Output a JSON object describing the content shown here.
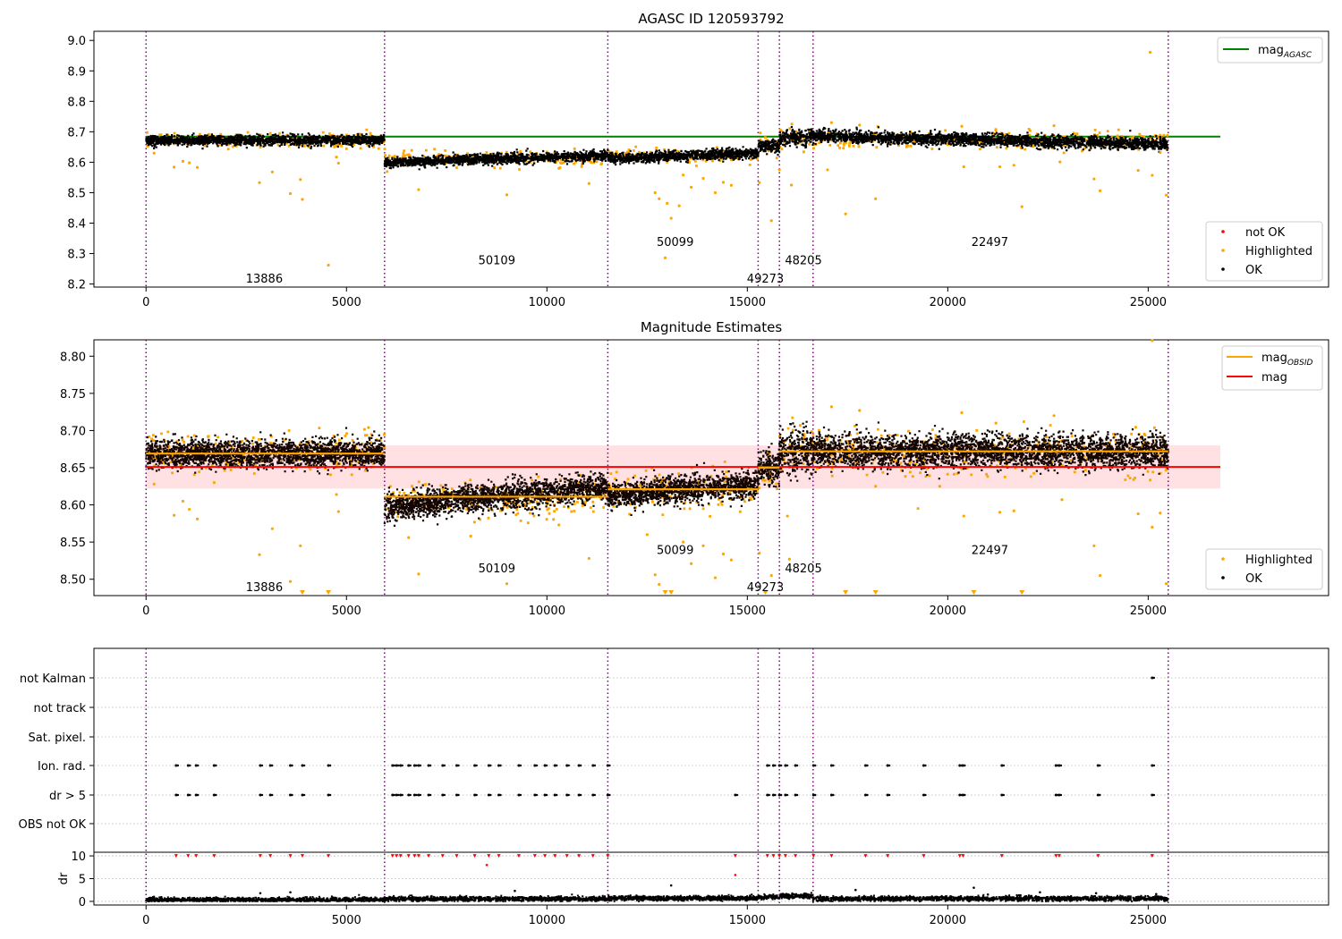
{
  "chart_data": [
    {
      "type": "scatter",
      "title": "AGASC ID 120593792",
      "xlim": [
        -1300,
        29500
      ],
      "ylim": [
        8.19,
        9.03
      ],
      "xticks": [
        0,
        5000,
        10000,
        15000,
        20000,
        25000
      ],
      "yticks": [
        8.2,
        8.3,
        8.4,
        8.5,
        8.6,
        8.7,
        8.8,
        8.9,
        9.0
      ],
      "xlabel": "",
      "ylabel": "",
      "grid": false,
      "obsid_boundaries": [
        0,
        5950,
        11520,
        15270,
        15800,
        16640,
        25500
      ],
      "obsid_segments": [
        {
          "obsid": "13886",
          "start": 0,
          "end": 5950,
          "level": 8.672,
          "spread": 0.01
        },
        {
          "obsid": "50109",
          "start": 5950,
          "end": 11520,
          "level": 8.611,
          "spread": 0.01
        },
        {
          "obsid": "50099",
          "start": 11520,
          "end": 15270,
          "level": 8.622,
          "spread": 0.01
        },
        {
          "obsid": "49273",
          "start": 15270,
          "end": 15800,
          "level": 8.652,
          "spread": 0.012
        },
        {
          "obsid": "48205",
          "start": 15800,
          "end": 16640,
          "level": 8.68,
          "spread": 0.016
        },
        {
          "obsid": "22497",
          "start": 16640,
          "end": 25500,
          "level": 8.672,
          "spread": 0.012
        }
      ],
      "obsid_labels": [
        {
          "text": "13886",
          "x": 2950,
          "y": 8.22
        },
        {
          "text": "50109",
          "x": 8750,
          "y": 8.28
        },
        {
          "text": "50099",
          "x": 13200,
          "y": 8.34
        },
        {
          "text": "49273",
          "x": 15450,
          "y": 8.22
        },
        {
          "text": "48205",
          "x": 16400,
          "y": 8.28
        },
        {
          "text": "22497",
          "x": 21050,
          "y": 8.34
        }
      ],
      "reference_line": {
        "name": "mag_AGASC",
        "y": 8.684,
        "x_range": [
          0,
          26800
        ],
        "color": "#008000"
      },
      "highlighted_points": [
        [
          2830,
          8.533
        ],
        [
          3150,
          8.568
        ],
        [
          3600,
          8.497
        ],
        [
          3850,
          8.543
        ],
        [
          3900,
          8.478
        ],
        [
          4550,
          8.262
        ],
        [
          4750,
          8.617
        ],
        [
          4800,
          8.597
        ],
        [
          920,
          8.603
        ],
        [
          1080,
          8.598
        ],
        [
          1280,
          8.583
        ],
        [
          200,
          8.63
        ],
        [
          700,
          8.584
        ],
        [
          6800,
          8.51
        ],
        [
          9000,
          8.493
        ],
        [
          10300,
          8.58
        ],
        [
          11050,
          8.53
        ],
        [
          12700,
          8.5
        ],
        [
          12800,
          8.48
        ],
        [
          13000,
          8.465
        ],
        [
          13100,
          8.416
        ],
        [
          13300,
          8.457
        ],
        [
          13400,
          8.558
        ],
        [
          13600,
          8.518
        ],
        [
          13900,
          8.547
        ],
        [
          14200,
          8.5
        ],
        [
          14400,
          8.534
        ],
        [
          14600,
          8.524
        ],
        [
          12950,
          8.286
        ],
        [
          15300,
          8.533
        ],
        [
          15600,
          8.408
        ],
        [
          15800,
          8.575
        ],
        [
          16100,
          8.525
        ],
        [
          17450,
          8.43
        ],
        [
          17000,
          8.575
        ],
        [
          18200,
          8.48
        ],
        [
          20400,
          8.585
        ],
        [
          21300,
          8.585
        ],
        [
          21650,
          8.59
        ],
        [
          21850,
          8.454
        ],
        [
          22800,
          8.601
        ],
        [
          23650,
          8.545
        ],
        [
          23800,
          8.506
        ],
        [
          24750,
          8.573
        ],
        [
          25100,
          8.557
        ],
        [
          25300,
          8.632
        ],
        [
          25450,
          8.492
        ],
        [
          25050,
          8.961
        ],
        [
          17100,
          8.73
        ],
        [
          17800,
          8.722
        ],
        [
          20350,
          8.718
        ],
        [
          22650,
          8.72
        ],
        [
          21200,
          8.705
        ]
      ],
      "legend_top": [
        {
          "label": "mag_AGASC",
          "color": "#008000",
          "marker": "line"
        }
      ],
      "legend_bottom": [
        {
          "label": "not OK",
          "color": "#ff0000",
          "marker": "dot"
        },
        {
          "label": "Highlighted",
          "color": "#ffa500",
          "marker": "dot"
        },
        {
          "label": "OK",
          "color": "#000000",
          "marker": "dot"
        }
      ]
    },
    {
      "type": "scatter",
      "title": "Magnitude Estimates",
      "xlim": [
        -1300,
        29500
      ],
      "ylim": [
        8.478,
        8.822
      ],
      "xticks": [
        0,
        5000,
        10000,
        15000,
        20000,
        25000
      ],
      "yticks": [
        8.5,
        8.55,
        8.6,
        8.65,
        8.7,
        8.75,
        8.8
      ],
      "xlabel": "",
      "ylabel": "",
      "grid": false,
      "mag_line": {
        "name": "mag",
        "y": 8.651,
        "band": [
          8.622,
          8.68
        ],
        "x_range": [
          0,
          26800
        ],
        "color": "#ff0000",
        "band_color": "#ffdde0"
      },
      "mag_obsid": {
        "name": "mag_OBSID",
        "color": "#ffa500",
        "levels": [
          {
            "start": 0,
            "end": 5950,
            "y": 8.669
          },
          {
            "start": 5950,
            "end": 11520,
            "y": 8.611
          },
          {
            "start": 11520,
            "end": 15270,
            "y": 8.621
          },
          {
            "start": 15270,
            "end": 15800,
            "y": 8.65
          },
          {
            "start": 15800,
            "end": 16640,
            "y": 8.672
          },
          {
            "start": 16640,
            "end": 25500,
            "y": 8.672
          }
        ]
      },
      "obsid_labels": [
        {
          "text": "13886",
          "x": 2950,
          "y": 8.49
        },
        {
          "text": "50109",
          "x": 8750,
          "y": 8.515
        },
        {
          "text": "50099",
          "x": 13200,
          "y": 8.54
        },
        {
          "text": "49273",
          "x": 15450,
          "y": 8.49
        },
        {
          "text": "48205",
          "x": 16400,
          "y": 8.515
        },
        {
          "text": "22497",
          "x": 21050,
          "y": 8.54
        }
      ],
      "highlighted_points": [
        [
          2830,
          8.533
        ],
        [
          3150,
          8.568
        ],
        [
          3600,
          8.497
        ],
        [
          3850,
          8.545
        ],
        [
          4750,
          8.614
        ],
        [
          4800,
          8.591
        ],
        [
          920,
          8.605
        ],
        [
          1080,
          8.594
        ],
        [
          1280,
          8.581
        ],
        [
          200,
          8.628
        ],
        [
          700,
          8.586
        ],
        [
          1700,
          8.63
        ],
        [
          6550,
          8.556
        ],
        [
          6800,
          8.507
        ],
        [
          8100,
          8.558
        ],
        [
          9000,
          8.494
        ],
        [
          10300,
          8.573
        ],
        [
          11050,
          8.528
        ],
        [
          12500,
          8.56
        ],
        [
          12700,
          8.506
        ],
        [
          12800,
          8.493
        ],
        [
          13400,
          8.55
        ],
        [
          13600,
          8.521
        ],
        [
          13900,
          8.545
        ],
        [
          14200,
          8.502
        ],
        [
          14400,
          8.534
        ],
        [
          14600,
          8.526
        ],
        [
          15300,
          8.535
        ],
        [
          15600,
          8.505
        ],
        [
          16000,
          8.585
        ],
        [
          16050,
          8.527
        ],
        [
          18200,
          8.625
        ],
        [
          19800,
          8.625
        ],
        [
          20400,
          8.585
        ],
        [
          21300,
          8.59
        ],
        [
          21650,
          8.592
        ],
        [
          22850,
          8.607
        ],
        [
          23650,
          8.545
        ],
        [
          23800,
          8.505
        ],
        [
          24750,
          8.588
        ],
        [
          25100,
          8.57
        ],
        [
          25300,
          8.589
        ],
        [
          25450,
          8.494
        ],
        [
          25100,
          8.821
        ],
        [
          5550,
          8.704
        ],
        [
          17100,
          8.732
        ],
        [
          17800,
          8.727
        ],
        [
          20350,
          8.724
        ],
        [
          22650,
          8.72
        ],
        [
          21200,
          8.71
        ]
      ],
      "clipped_low": [
        3900,
        4550,
        12950,
        13100,
        15450,
        17450,
        18200,
        20650,
        21850
      ],
      "legend_top": [
        {
          "label": "mag_OBSID",
          "color": "#ffa500",
          "marker": "line"
        },
        {
          "label": "mag",
          "color": "#ff0000",
          "marker": "line"
        }
      ],
      "legend_bottom": [
        {
          "label": "Highlighted",
          "color": "#ffa500",
          "marker": "dot"
        },
        {
          "label": "OK",
          "color": "#000000",
          "marker": "dot"
        }
      ]
    },
    {
      "type": "scatter",
      "title": "",
      "xlim": [
        -1300,
        29500
      ],
      "xticks": [
        0,
        5000,
        10000,
        15000,
        20000,
        25000
      ],
      "flag_rows": [
        "not Kalman",
        "not track",
        "Sat. pixel.",
        "Ion. rad.",
        "dr > 5",
        "OBS not OK"
      ],
      "flag_points": {
        "not Kalman": [
          25100
        ],
        "not track": [],
        "Sat. pixel.": [],
        "Ion. rad.": [
          750,
          1050,
          1250,
          1700,
          2850,
          3100,
          3600,
          3900,
          4550,
          6150,
          6250,
          6350,
          6550,
          6700,
          6800,
          7050,
          7400,
          7750,
          8200,
          8550,
          8800,
          9300,
          9700,
          9950,
          10200,
          10500,
          10800,
          11150,
          11520,
          15500,
          15650,
          15800,
          15950,
          16200,
          16650,
          17100,
          17950,
          18500,
          19400,
          20300,
          20380,
          21350,
          22700,
          22780,
          23750,
          25100
        ],
        "dr > 5": [
          750,
          1050,
          1250,
          1700,
          2850,
          3100,
          3600,
          3900,
          4550,
          6150,
          6250,
          6350,
          6550,
          6700,
          6800,
          7050,
          7400,
          7750,
          8200,
          8550,
          8800,
          9300,
          9700,
          9950,
          10200,
          10500,
          10800,
          11150,
          11520,
          14700,
          15500,
          15650,
          15800,
          15950,
          16200,
          16650,
          17100,
          17950,
          18500,
          19400,
          20300,
          20380,
          21350,
          22700,
          22780,
          23750,
          25100
        ],
        "OBS not OK": []
      },
      "dr_panel": {
        "ylabel": "dr",
        "yticks": [
          0,
          5,
          10
        ],
        "ylim": [
          -0.8,
          10.8
        ],
        "clip_value": 10,
        "baseline_segments": [
          {
            "start": 0,
            "end": 5950,
            "level": 0.35
          },
          {
            "start": 5950,
            "end": 11520,
            "level": 0.55
          },
          {
            "start": 11520,
            "end": 15270,
            "level": 0.7
          },
          {
            "start": 15270,
            "end": 15800,
            "level": 0.9
          },
          {
            "start": 15800,
            "end": 16640,
            "level": 1.2
          },
          {
            "start": 16640,
            "end": 25500,
            "level": 0.6
          }
        ],
        "outlier_points": [
          [
            2850,
            1.8
          ],
          [
            3600,
            2.0
          ],
          [
            9200,
            2.3
          ],
          [
            8500,
            8.0
          ],
          [
            13100,
            3.5
          ],
          [
            14700,
            5.8
          ],
          [
            17700,
            2.5
          ],
          [
            20650,
            3.0
          ],
          [
            22300,
            2.0
          ],
          [
            23700,
            1.8
          ],
          [
            21000,
            1.5
          ],
          [
            25200,
            1.6
          ]
        ]
      }
    }
  ]
}
